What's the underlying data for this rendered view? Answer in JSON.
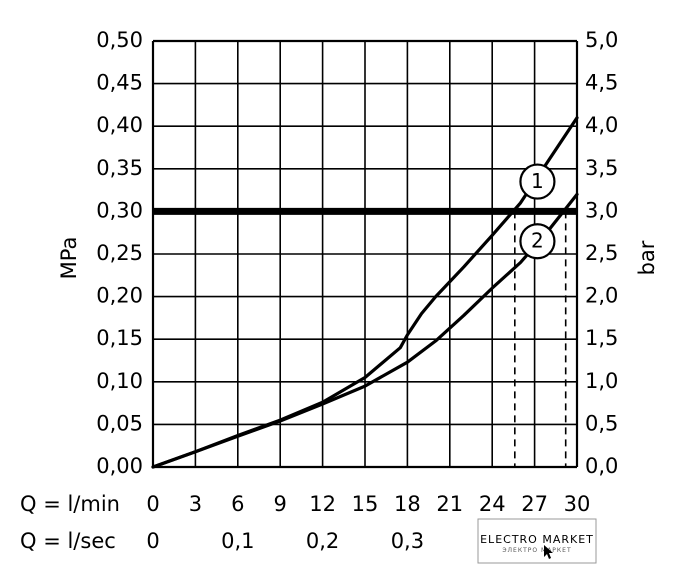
{
  "chart_data": {
    "type": "line",
    "ylabel_left": "MPa",
    "ylabel_right": "bar",
    "ylim": [
      0,
      0.5
    ],
    "xlim": [
      0,
      30
    ],
    "grid": true,
    "y_ticks_left": [
      "0,00",
      "0,05",
      "0,10",
      "0,15",
      "0,20",
      "0,25",
      "0,30",
      "0,35",
      "0,40",
      "0,45",
      "0,50"
    ],
    "y_ticks_right": [
      "0,0",
      "0,5",
      "1,0",
      "1,5",
      "2,0",
      "2,5",
      "3,0",
      "3,5",
      "4,0",
      "4,5",
      "5,0"
    ],
    "x_row1": {
      "label": "Q = l/min",
      "ticks": [
        {
          "value": 0,
          "text": "0"
        },
        {
          "value": 3,
          "text": "3"
        },
        {
          "value": 6,
          "text": "6"
        },
        {
          "value": 9,
          "text": "9"
        },
        {
          "value": 12,
          "text": "12"
        },
        {
          "value": 15,
          "text": "15"
        },
        {
          "value": 18,
          "text": "18"
        },
        {
          "value": 21,
          "text": "21"
        },
        {
          "value": 24,
          "text": "24"
        },
        {
          "value": 27,
          "text": "27"
        },
        {
          "value": 30,
          "text": "30"
        }
      ]
    },
    "x_row2": {
      "label": "Q = l/sec",
      "ticks": [
        {
          "value": 0,
          "text": "0"
        },
        {
          "value": 6,
          "text": "0,1"
        },
        {
          "value": 12,
          "text": "0,2"
        },
        {
          "value": 18,
          "text": "0,3"
        }
      ]
    },
    "reference_line": {
      "y": 0.3
    },
    "series": [
      {
        "marker": "1",
        "x": [
          0,
          3,
          6,
          9,
          12,
          15,
          17.5,
          18,
          19,
          20,
          22,
          24,
          26,
          28,
          30
        ],
        "y": [
          0,
          0.018,
          0.037,
          0.055,
          0.076,
          0.105,
          0.14,
          0.155,
          0.18,
          0.2,
          0.235,
          0.272,
          0.31,
          0.36,
          0.41
        ]
      },
      {
        "marker": "2",
        "x": [
          0,
          3,
          6,
          9,
          12,
          15,
          18,
          20,
          22,
          24,
          26,
          28,
          30
        ],
        "y": [
          0,
          0.018,
          0.036,
          0.054,
          0.074,
          0.095,
          0.123,
          0.148,
          0.178,
          0.21,
          0.24,
          0.278,
          0.32
        ]
      }
    ],
    "markers": [
      {
        "text": "1",
        "x": 27.2,
        "y": 0.335
      },
      {
        "text": "2",
        "x": 27.2,
        "y": 0.265
      }
    ],
    "dashed_drops": [
      {
        "x": 25.6,
        "y": 0.3
      },
      {
        "x": 29.2,
        "y": 0.3
      }
    ]
  },
  "logo": {
    "main": "ELECTRO MARKET",
    "sub": "ЭЛЕКТРО МАРКЕТ"
  }
}
